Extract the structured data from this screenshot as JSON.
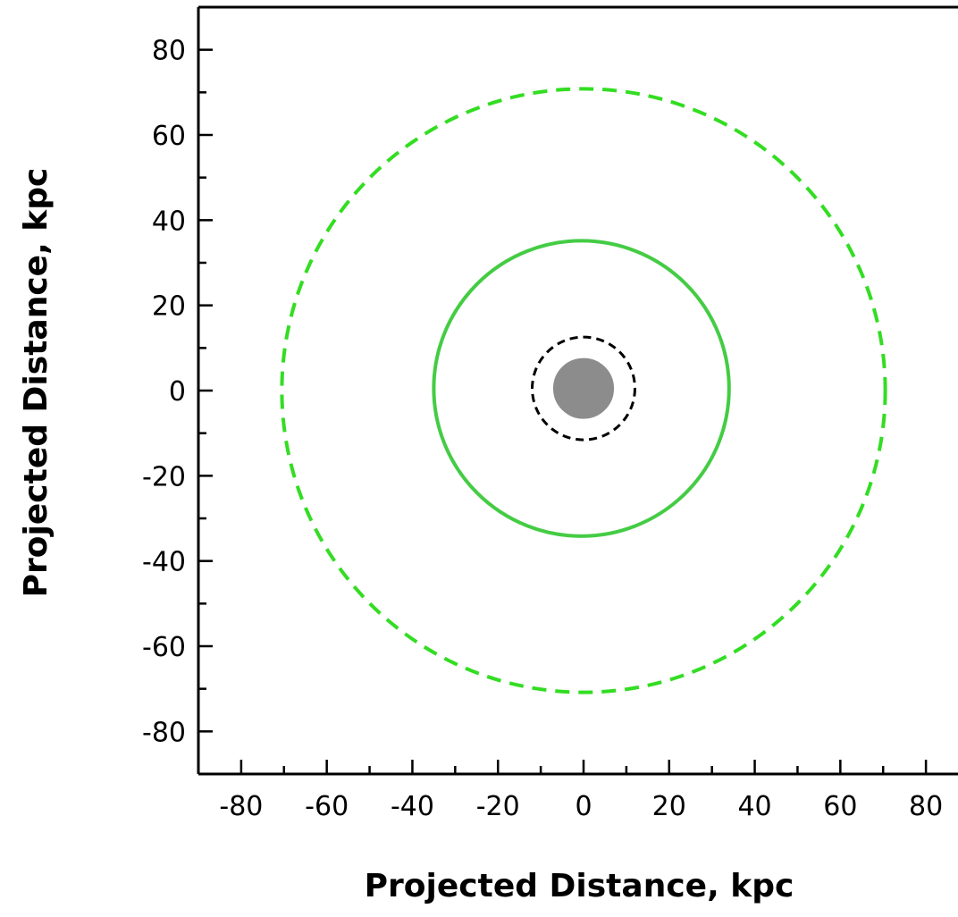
{
  "chart_data": {
    "type": "scatter",
    "title": "",
    "xlabel": "Projected Distance, kpc",
    "ylabel": "Projected Distance, kpc",
    "xlim": [
      -90,
      90
    ],
    "ylim": [
      -90,
      90
    ],
    "x_ticks": [
      -80,
      -60,
      -40,
      -20,
      0,
      20,
      40,
      60,
      80
    ],
    "y_ticks": [
      -80,
      -60,
      -40,
      -20,
      0,
      20,
      40,
      60,
      80
    ],
    "x_minor_step": 10,
    "y_minor_step": 10,
    "grid": false,
    "legend": "none",
    "shapes": [
      {
        "kind": "circle",
        "center": [
          0,
          0
        ],
        "radius": 70.5,
        "style": "dashed",
        "color": "#33dd22",
        "fill": "none"
      },
      {
        "kind": "circle",
        "center": [
          -0.5,
          0.5
        ],
        "radius": 34.5,
        "style": "solid",
        "color": "#44cc44",
        "fill": "none"
      },
      {
        "kind": "circle",
        "center": [
          0,
          0.5
        ],
        "radius": 12,
        "style": "dashed",
        "color": "#000000",
        "fill": "none"
      },
      {
        "kind": "circle",
        "center": [
          0,
          0.5
        ],
        "radius": 7,
        "style": "solid",
        "color": "#8c8c8c",
        "fill": "#8c8c8c"
      }
    ]
  }
}
